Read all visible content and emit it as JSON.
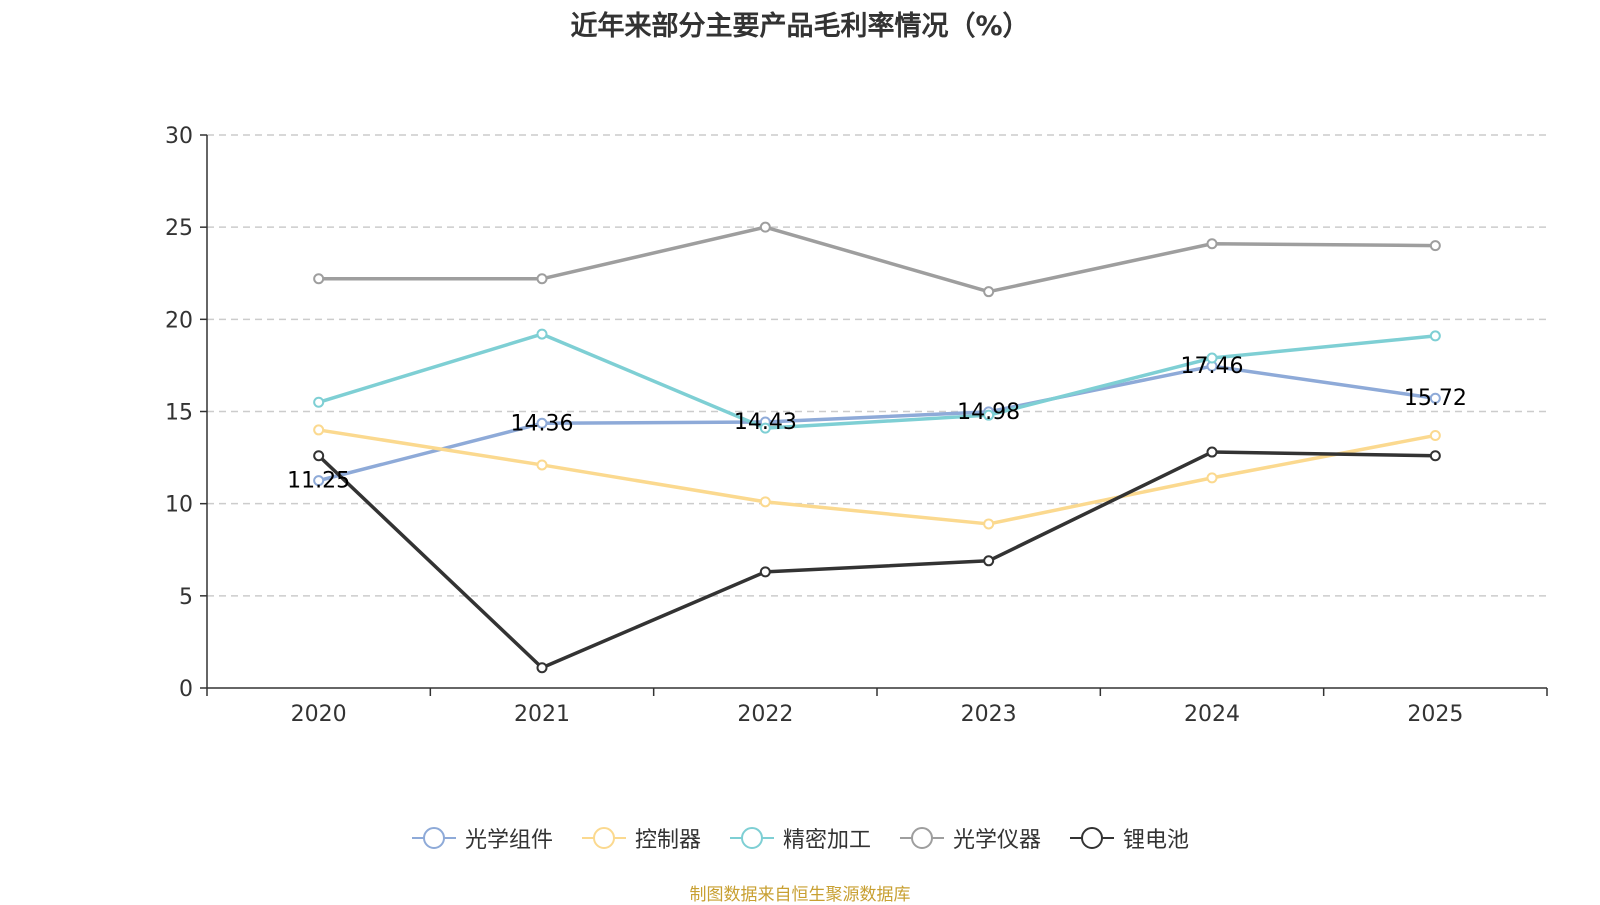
{
  "chart_data": {
    "type": "line",
    "title": "近年来部分主要产品毛利率情况（%）",
    "categories": [
      "2020",
      "2021",
      "2022",
      "2023",
      "2024",
      "2025"
    ],
    "ylim": [
      0,
      30
    ],
    "yticks": [
      0,
      5,
      10,
      15,
      20,
      25,
      30
    ],
    "grid": true,
    "legend_position": "bottom",
    "series": [
      {
        "name": "光学组件",
        "color": "#8eaad8",
        "values": [
          11.25,
          14.36,
          14.43,
          14.98,
          17.46,
          15.72
        ],
        "show_labels": true,
        "labels": [
          "11.25",
          "14.36",
          "14.43",
          "14.98",
          "17.46",
          "15.72"
        ]
      },
      {
        "name": "控制器",
        "color": "#fbd98f",
        "values": [
          14.0,
          12.1,
          10.1,
          8.9,
          11.4,
          13.7
        ],
        "show_labels": false
      },
      {
        "name": "精密加工",
        "color": "#7ecfd4",
        "values": [
          15.5,
          19.2,
          14.1,
          14.8,
          17.9,
          19.1
        ],
        "show_labels": false
      },
      {
        "name": "光学仪器",
        "color": "#9e9e9e",
        "values": [
          22.2,
          22.2,
          25.0,
          21.5,
          24.1,
          24.0
        ],
        "show_labels": false
      },
      {
        "name": "锂电池",
        "color": "#333333",
        "values": [
          12.6,
          1.1,
          6.3,
          6.9,
          12.8,
          12.6
        ],
        "show_labels": false
      }
    ]
  },
  "source_note": "制图数据来自恒生聚源数据库"
}
